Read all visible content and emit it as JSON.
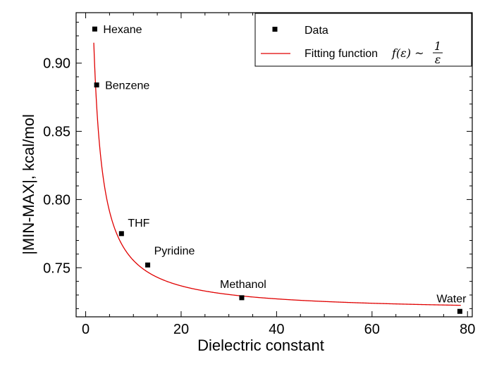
{
  "chart_data": {
    "type": "scatter",
    "xlabel": "Dielectric constant",
    "ylabel": "|MIN-MAX|, kcal/mol",
    "xlim": [
      -2,
      81
    ],
    "ylim": [
      0.714,
      0.937
    ],
    "xticks": [
      0,
      20,
      40,
      60,
      80
    ],
    "xtick_labels": [
      "0",
      "20",
      "40",
      "60",
      "80"
    ],
    "yticks": [
      0.75,
      0.8,
      0.85,
      0.9
    ],
    "ytick_labels": [
      "0.75",
      "0.80",
      "0.85",
      "0.90"
    ],
    "grid": false,
    "legend_position": "top-right",
    "series": [
      {
        "name": "Data",
        "kind": "scatter",
        "color": "#000000",
        "marker": "square",
        "points": [
          {
            "label": "Hexane",
            "x": 1.9,
            "y": 0.925
          },
          {
            "label": "Benzene",
            "x": 2.3,
            "y": 0.884
          },
          {
            "label": "THF",
            "x": 7.5,
            "y": 0.775
          },
          {
            "label": "Pyridine",
            "x": 13.0,
            "y": 0.752
          },
          {
            "label": "Methanol",
            "x": 32.7,
            "y": 0.728
          },
          {
            "label": "Water",
            "x": 78.4,
            "y": 0.718
          }
        ]
      },
      {
        "name": "Fitting function",
        "kind": "line",
        "color": "#e00000",
        "formula": "f(ε) ~ 1/ε",
        "model": {
          "a": 0.7175,
          "b": 0.389,
          "c": 0.27
        }
      }
    ],
    "legend": {
      "data_label": "Data",
      "fit_label": "Fitting function",
      "fit_formula_left": "f(ε) ~",
      "fit_formula_num": "1",
      "fit_formula_den": "ε"
    }
  }
}
